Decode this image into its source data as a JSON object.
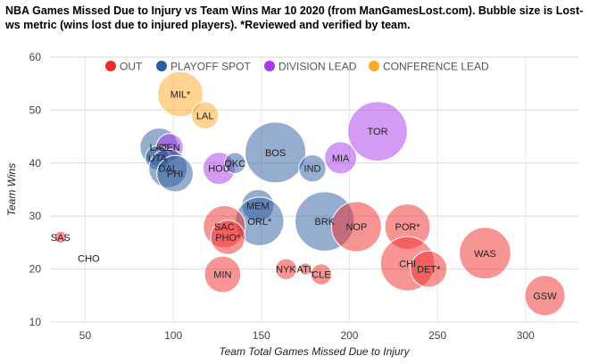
{
  "chart_data": {
    "type": "bubble",
    "title": "NBA Games Missed Due to Injury vs Team Wins Mar 10 2020 (from ManGamesLost.com). Bubble size is Lost-ws metric (wins lost due to injured players). *Reviewed and verified by team.",
    "xlabel": "Team Total Games Missed Due to Injury",
    "ylabel": "Team Wins",
    "xlim": [
      30,
      330
    ],
    "ylim": [
      10,
      60
    ],
    "x_ticks": [
      50,
      100,
      150,
      200,
      250,
      300
    ],
    "y_ticks": [
      10,
      20,
      30,
      40,
      50,
      60
    ],
    "legend": [
      {
        "key": "out",
        "label": "OUT",
        "color": "#ef2b2b"
      },
      {
        "key": "playoff",
        "label": "PLAYOFF SPOT",
        "color": "#2c5b9e"
      },
      {
        "key": "division",
        "label": "DIVISION LEAD",
        "color": "#a838e8"
      },
      {
        "key": "conference",
        "label": "CONFERENCE LEAD",
        "color": "#ffa726"
      }
    ],
    "points": [
      {
        "label": "SAS",
        "x": 36,
        "y": 26,
        "size": 0.1,
        "group": "out"
      },
      {
        "label": "CHO",
        "x": 52,
        "y": 22,
        "size": 0.0,
        "group": "out"
      },
      {
        "label": "MIL*",
        "x": 104,
        "y": 53,
        "size": 1.4,
        "group": "conference"
      },
      {
        "label": "LAL",
        "x": 118,
        "y": 49,
        "size": 0.5,
        "group": "conference"
      },
      {
        "label": "LAC",
        "x": 92,
        "y": 43,
        "size": 1.0,
        "group": "playoff"
      },
      {
        "label": "DEN",
        "x": 98,
        "y": 43,
        "size": 0.5,
        "group": "division"
      },
      {
        "label": "UTA",
        "x": 91,
        "y": 41,
        "size": 0.4,
        "group": "playoff"
      },
      {
        "label": "DAL",
        "x": 97,
        "y": 39,
        "size": 1.0,
        "group": "playoff"
      },
      {
        "label": "PHI",
        "x": 101,
        "y": 38,
        "size": 0.9,
        "group": "playoff"
      },
      {
        "label": "HOU",
        "x": 126,
        "y": 39,
        "size": 0.7,
        "group": "division"
      },
      {
        "label": "OKC",
        "x": 135,
        "y": 40,
        "size": 0.3,
        "group": "playoff"
      },
      {
        "label": "BOS",
        "x": 158,
        "y": 42,
        "size": 2.5,
        "group": "playoff"
      },
      {
        "label": "IND",
        "x": 179,
        "y": 39,
        "size": 0.5,
        "group": "playoff"
      },
      {
        "label": "MIA",
        "x": 195,
        "y": 41,
        "size": 0.7,
        "group": "division"
      },
      {
        "label": "TOR",
        "x": 216,
        "y": 46,
        "size": 2.4,
        "group": "division"
      },
      {
        "label": "MEM",
        "x": 148,
        "y": 32,
        "size": 0.7,
        "group": "playoff"
      },
      {
        "label": "ORL*",
        "x": 149,
        "y": 29,
        "size": 1.6,
        "group": "playoff"
      },
      {
        "label": "SAC",
        "x": 129,
        "y": 28,
        "size": 1.2,
        "group": "out"
      },
      {
        "label": "PHO*",
        "x": 131,
        "y": 26,
        "size": 0.8,
        "group": "out"
      },
      {
        "label": "BRK",
        "x": 186,
        "y": 29,
        "size": 2.4,
        "group": "playoff"
      },
      {
        "label": "NOP",
        "x": 204,
        "y": 28,
        "size": 1.7,
        "group": "out"
      },
      {
        "label": "POR*",
        "x": 233,
        "y": 28,
        "size": 1.4,
        "group": "out"
      },
      {
        "label": "MIN",
        "x": 128,
        "y": 19,
        "size": 0.9,
        "group": "out"
      },
      {
        "label": "NYK",
        "x": 164,
        "y": 20,
        "size": 0.3,
        "group": "out"
      },
      {
        "label": "ATL",
        "x": 175,
        "y": 20,
        "size": 0.1,
        "group": "out"
      },
      {
        "label": "CLE",
        "x": 184,
        "y": 19,
        "size": 0.3,
        "group": "out"
      },
      {
        "label": "CHI",
        "x": 233,
        "y": 21,
        "size": 2.0,
        "group": "out"
      },
      {
        "label": "DET*",
        "x": 245,
        "y": 20,
        "size": 0.9,
        "group": "out"
      },
      {
        "label": "WAS",
        "x": 277,
        "y": 23,
        "size": 1.8,
        "group": "out"
      },
      {
        "label": "GSW",
        "x": 311,
        "y": 15,
        "size": 1.1,
        "group": "out"
      }
    ]
  }
}
